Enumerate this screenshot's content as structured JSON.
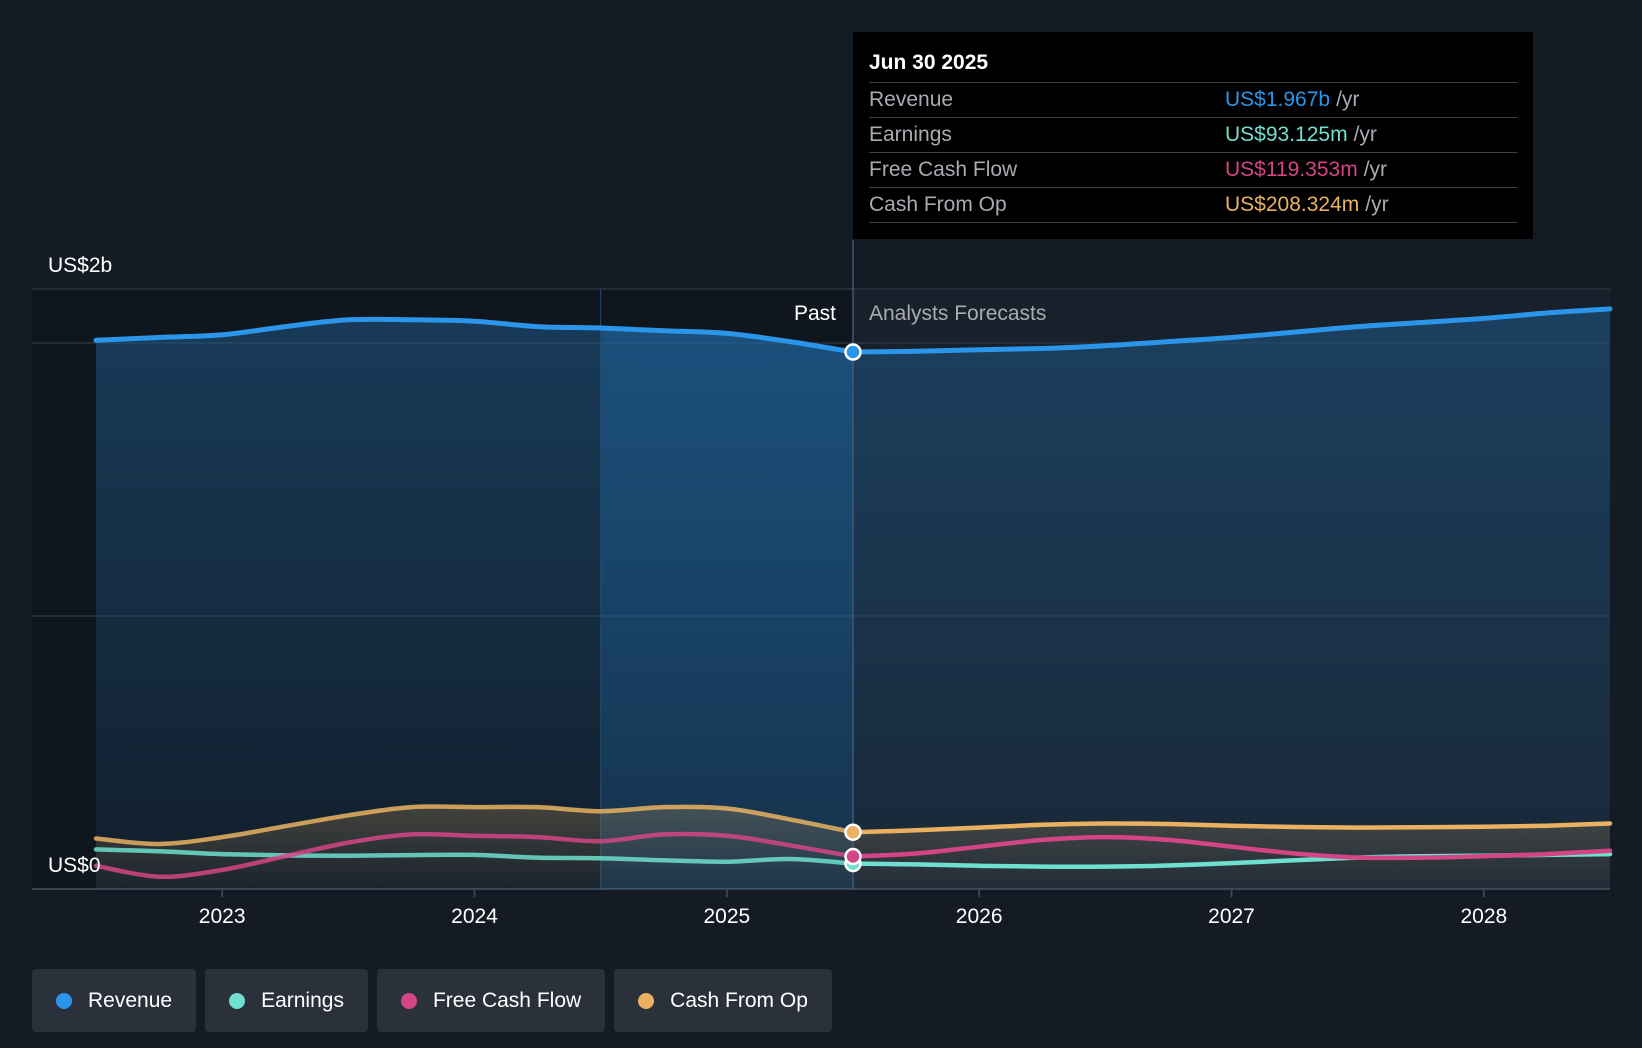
{
  "chart_data": {
    "type": "line",
    "y_axis": {
      "top_label": "US$2b",
      "bottom_label": "US$0",
      "ylim": [
        0,
        2.2
      ]
    },
    "x_ticks": [
      "2023",
      "2024",
      "2025",
      "2026",
      "2027",
      "2028"
    ],
    "x_range": [
      2022.5,
      2028.5
    ],
    "divider_x": 2025.5,
    "highlight_range": [
      2024.5,
      2025.5
    ],
    "past_label": "Past",
    "forecast_label": "Analysts Forecasts",
    "series": [
      {
        "name": "Revenue",
        "color": "#2b95e9",
        "points": [
          [
            2022.5,
            2.01
          ],
          [
            2022.75,
            2.02
          ],
          [
            2023.0,
            2.03
          ],
          [
            2023.25,
            2.06
          ],
          [
            2023.5,
            2.085
          ],
          [
            2023.75,
            2.085
          ],
          [
            2024.0,
            2.08
          ],
          [
            2024.25,
            2.06
          ],
          [
            2024.5,
            2.055
          ],
          [
            2024.75,
            2.045
          ],
          [
            2025.0,
            2.035
          ],
          [
            2025.25,
            2.005
          ],
          [
            2025.5,
            1.967
          ],
          [
            2025.75,
            1.97
          ],
          [
            2026.0,
            1.975
          ],
          [
            2026.25,
            1.98
          ],
          [
            2026.5,
            1.99
          ],
          [
            2026.75,
            2.005
          ],
          [
            2027.0,
            2.02
          ],
          [
            2027.25,
            2.04
          ],
          [
            2027.5,
            2.06
          ],
          [
            2027.75,
            2.075
          ],
          [
            2028.0,
            2.09
          ],
          [
            2028.25,
            2.11
          ],
          [
            2028.5,
            2.125
          ]
        ]
      },
      {
        "name": "Earnings",
        "color": "#6fdfcf",
        "points": [
          [
            2022.5,
            0.145
          ],
          [
            2022.75,
            0.138
          ],
          [
            2023.0,
            0.128
          ],
          [
            2023.25,
            0.123
          ],
          [
            2023.5,
            0.122
          ],
          [
            2023.75,
            0.124
          ],
          [
            2024.0,
            0.125
          ],
          [
            2024.25,
            0.115
          ],
          [
            2024.5,
            0.113
          ],
          [
            2024.75,
            0.105
          ],
          [
            2025.0,
            0.1
          ],
          [
            2025.25,
            0.11
          ],
          [
            2025.5,
            0.093
          ],
          [
            2025.75,
            0.09
          ],
          [
            2026.0,
            0.085
          ],
          [
            2026.25,
            0.082
          ],
          [
            2026.5,
            0.082
          ],
          [
            2026.75,
            0.086
          ],
          [
            2027.0,
            0.095
          ],
          [
            2027.25,
            0.105
          ],
          [
            2027.5,
            0.115
          ],
          [
            2027.75,
            0.12
          ],
          [
            2028.0,
            0.122
          ],
          [
            2028.25,
            0.125
          ],
          [
            2028.5,
            0.128
          ]
        ]
      },
      {
        "name": "Free Cash Flow",
        "color": "#d44585",
        "points": [
          [
            2022.5,
            0.085
          ],
          [
            2022.75,
            0.045
          ],
          [
            2023.0,
            0.07
          ],
          [
            2023.25,
            0.12
          ],
          [
            2023.5,
            0.17
          ],
          [
            2023.75,
            0.2
          ],
          [
            2024.0,
            0.195
          ],
          [
            2024.25,
            0.19
          ],
          [
            2024.5,
            0.175
          ],
          [
            2024.75,
            0.2
          ],
          [
            2025.0,
            0.195
          ],
          [
            2025.25,
            0.16
          ],
          [
            2025.5,
            0.119
          ],
          [
            2025.75,
            0.13
          ],
          [
            2026.0,
            0.155
          ],
          [
            2026.25,
            0.18
          ],
          [
            2026.5,
            0.19
          ],
          [
            2026.75,
            0.18
          ],
          [
            2027.0,
            0.155
          ],
          [
            2027.25,
            0.13
          ],
          [
            2027.5,
            0.115
          ],
          [
            2027.75,
            0.115
          ],
          [
            2028.0,
            0.12
          ],
          [
            2028.25,
            0.128
          ],
          [
            2028.5,
            0.14
          ]
        ]
      },
      {
        "name": "Cash From Op",
        "color": "#e9b160",
        "points": [
          [
            2022.5,
            0.185
          ],
          [
            2022.75,
            0.165
          ],
          [
            2023.0,
            0.19
          ],
          [
            2023.25,
            0.23
          ],
          [
            2023.5,
            0.27
          ],
          [
            2023.75,
            0.3
          ],
          [
            2024.0,
            0.3
          ],
          [
            2024.25,
            0.3
          ],
          [
            2024.5,
            0.285
          ],
          [
            2024.75,
            0.3
          ],
          [
            2025.0,
            0.295
          ],
          [
            2025.25,
            0.255
          ],
          [
            2025.5,
            0.208
          ],
          [
            2025.75,
            0.215
          ],
          [
            2026.0,
            0.225
          ],
          [
            2026.25,
            0.235
          ],
          [
            2026.5,
            0.24
          ],
          [
            2026.75,
            0.238
          ],
          [
            2027.0,
            0.232
          ],
          [
            2027.25,
            0.227
          ],
          [
            2027.5,
            0.225
          ],
          [
            2027.75,
            0.226
          ],
          [
            2028.0,
            0.228
          ],
          [
            2028.25,
            0.232
          ],
          [
            2028.5,
            0.24
          ]
        ]
      }
    ]
  },
  "tooltip": {
    "date": "Jun 30 2025",
    "rows": [
      {
        "label": "Revenue",
        "value": "US$1.967b",
        "unit": "/yr",
        "color": "#2b95e9"
      },
      {
        "label": "Earnings",
        "value": "US$93.125m",
        "unit": "/yr",
        "color": "#6fdfcf"
      },
      {
        "label": "Free Cash Flow",
        "value": "US$119.353m",
        "unit": "/yr",
        "color": "#d44585"
      },
      {
        "label": "Cash From Op",
        "value": "US$208.324m",
        "unit": "/yr",
        "color": "#e9b160"
      }
    ]
  },
  "legend": [
    {
      "label": "Revenue",
      "color": "#2b95e9"
    },
    {
      "label": "Earnings",
      "color": "#6fdfcf"
    },
    {
      "label": "Free Cash Flow",
      "color": "#d44585"
    },
    {
      "label": "Cash From Op",
      "color": "#e9b160"
    }
  ]
}
